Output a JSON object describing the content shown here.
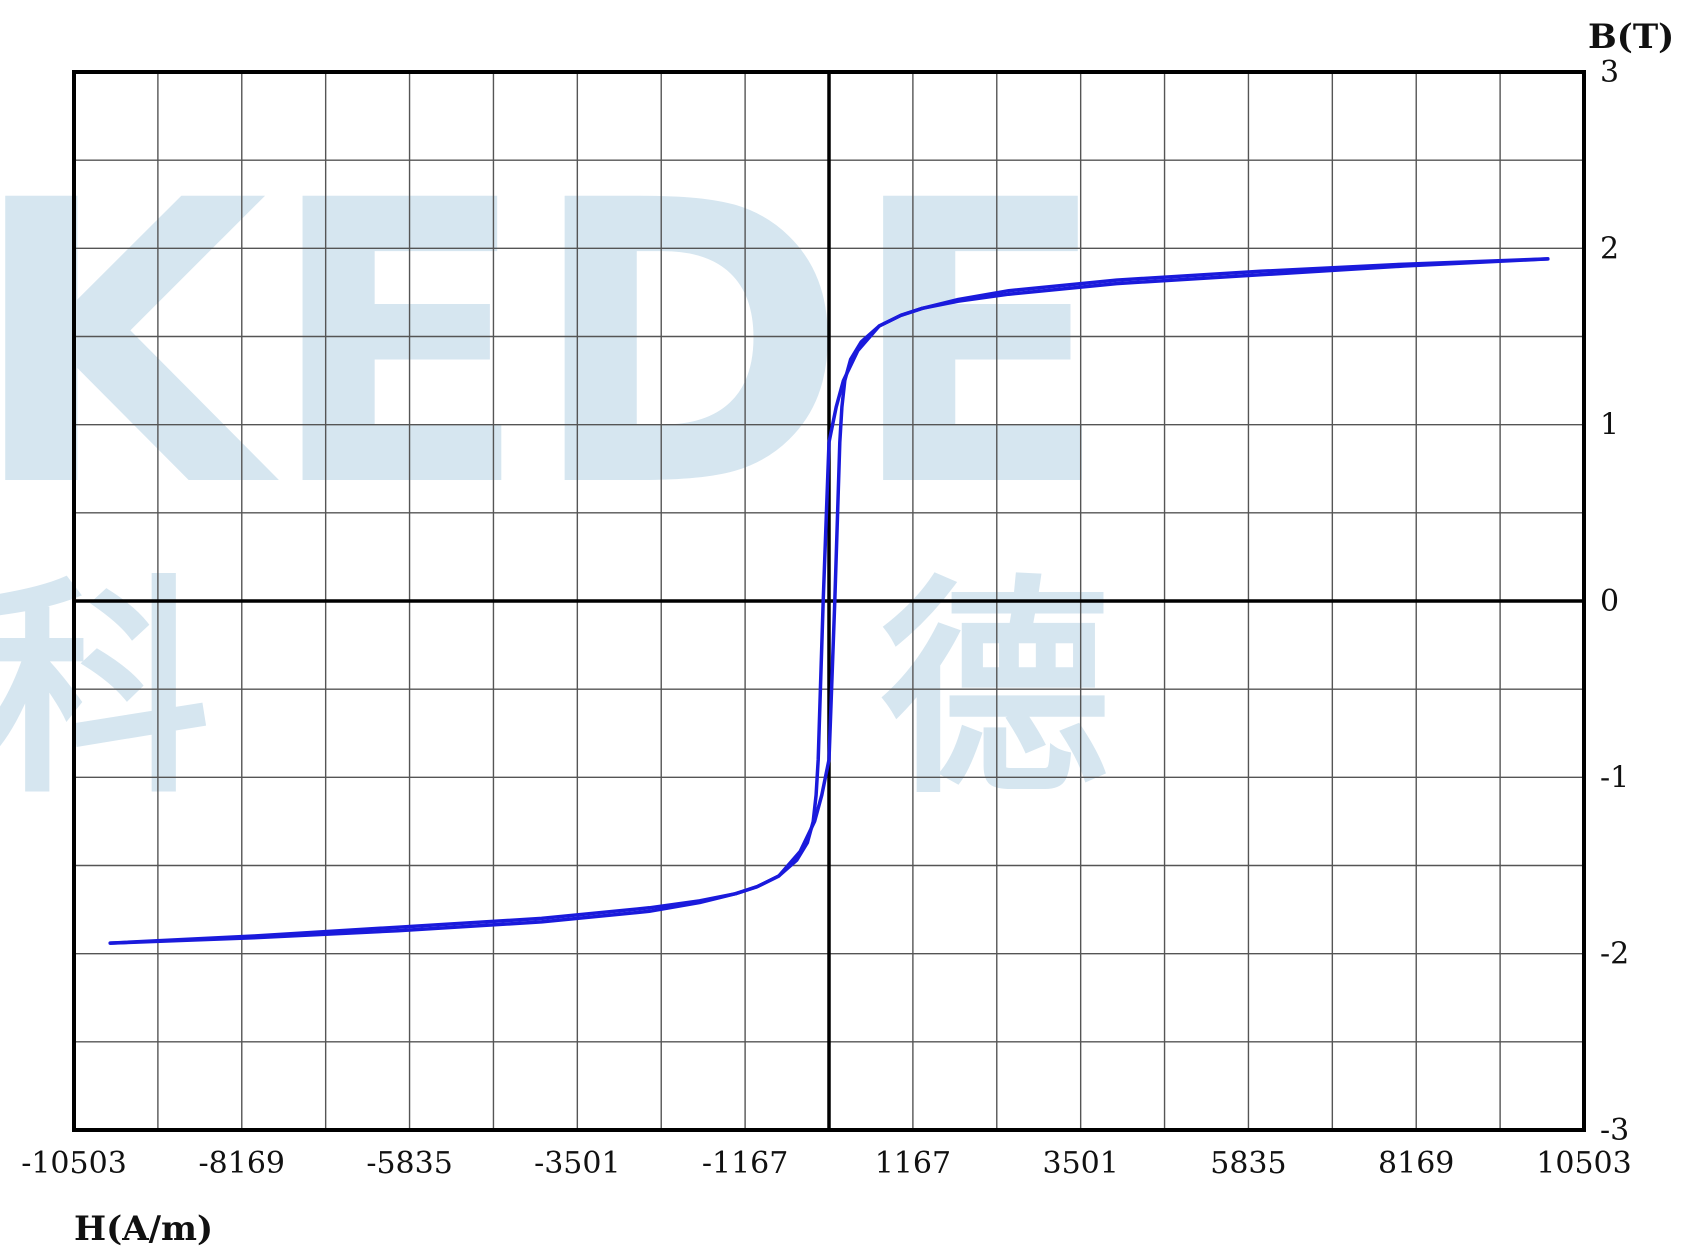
{
  "watermark": {
    "latin": "KEDE",
    "cjk_left": "科",
    "cjk_right": "德"
  },
  "chart_data": {
    "type": "line",
    "title": "",
    "xlabel": "H(A/m)",
    "ylabel": "B(T)",
    "xlim": [
      -10503,
      10503
    ],
    "ylim": [
      -3,
      3
    ],
    "x_ticks": [
      "-10503",
      "-8169",
      "-5835",
      "-3501",
      "-1167",
      "1167",
      "3501",
      "5835",
      "8169",
      "10503"
    ],
    "y_ticks": [
      "3",
      "2",
      "1",
      "0",
      "-1",
      "-2",
      "-3"
    ],
    "grid": true,
    "colors": {
      "curve": "#1a1adc",
      "grid": "#555555",
      "axis": "#000000",
      "watermark": "#cfe2ee"
    },
    "series": [
      {
        "x": [
          -10000,
          -8000,
          -6000,
          -4000,
          -2500,
          -1800,
          -1300,
          -1000,
          -700,
          -450,
          -300,
          -220,
          -180,
          -150,
          -120,
          -80,
          0,
          100,
          200,
          400,
          700,
          1000,
          1300,
          1800,
          2500,
          4000,
          6000,
          8000,
          10000
        ],
        "y": [
          -1.94,
          -1.91,
          -1.87,
          -1.82,
          -1.76,
          -1.71,
          -1.66,
          -1.62,
          -1.56,
          -1.47,
          -1.37,
          -1.25,
          -1.1,
          -0.9,
          -0.5,
          0,
          0.9,
          1.1,
          1.25,
          1.42,
          1.56,
          1.62,
          1.66,
          1.7,
          1.74,
          1.8,
          1.85,
          1.9,
          1.94
        ]
      },
      {
        "x": [
          10000,
          8000,
          6000,
          4000,
          2500,
          1800,
          1300,
          1000,
          700,
          450,
          300,
          220,
          180,
          150,
          120,
          80,
          0,
          -100,
          -200,
          -400,
          -700,
          -1000,
          -1300,
          -1800,
          -2500,
          -4000,
          -6000,
          -8000,
          -10000
        ],
        "y": [
          1.94,
          1.91,
          1.87,
          1.82,
          1.76,
          1.71,
          1.66,
          1.62,
          1.56,
          1.47,
          1.37,
          1.25,
          1.1,
          0.9,
          0.5,
          0,
          -0.9,
          -1.1,
          -1.25,
          -1.42,
          -1.56,
          -1.62,
          -1.66,
          -1.7,
          -1.74,
          -1.8,
          -1.85,
          -1.9,
          -1.94
        ]
      }
    ]
  }
}
